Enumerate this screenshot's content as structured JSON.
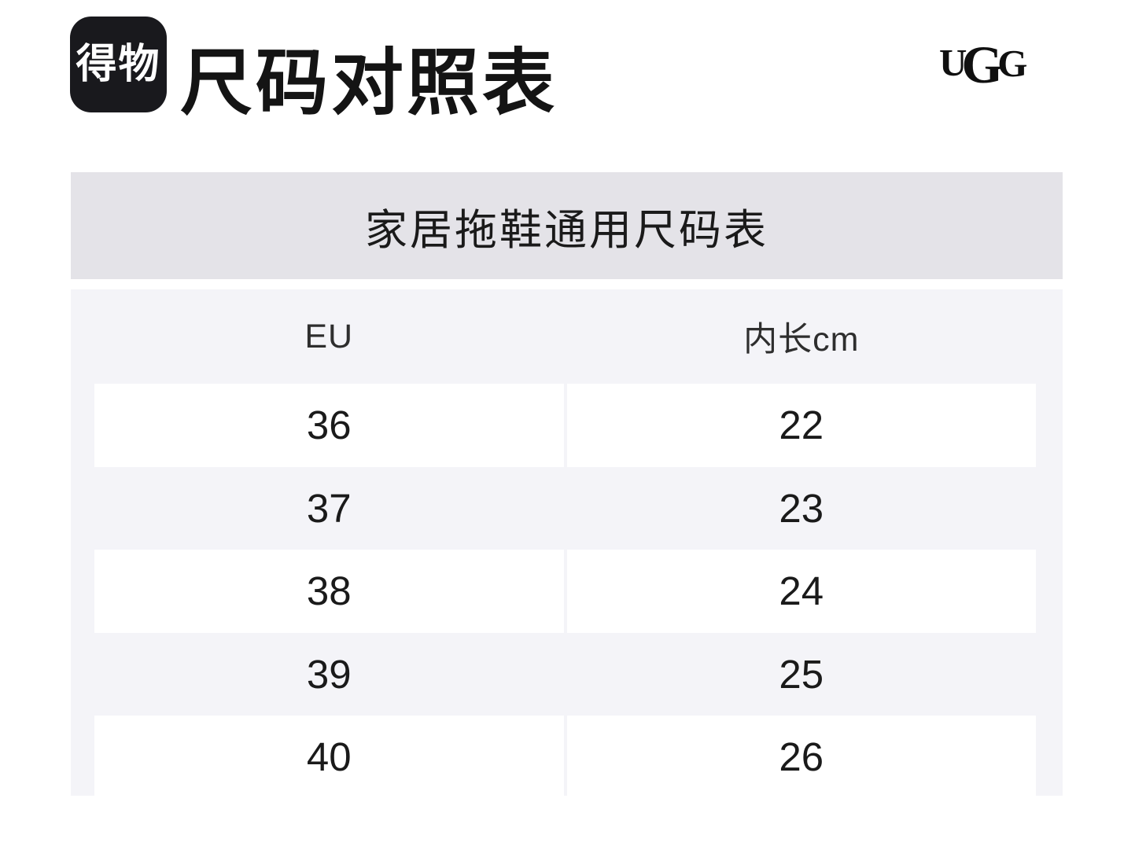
{
  "header": {
    "app_logo_text": "得物",
    "title": "尺码对照表",
    "brand_letters": [
      "U",
      "G",
      "G"
    ]
  },
  "banner": {
    "title": "家居拖鞋通用尺码表"
  },
  "size_table": {
    "columns": [
      "EU",
      "内长cm"
    ],
    "rows": [
      [
        "36",
        "22"
      ],
      [
        "37",
        "23"
      ],
      [
        "38",
        "24"
      ],
      [
        "39",
        "25"
      ],
      [
        "40",
        "26"
      ]
    ]
  },
  "colors": {
    "page_bg": "#ffffff",
    "logo_bg": "#19191d",
    "logo_text": "#ffffff",
    "title_text": "#141414",
    "banner_bg": "#e4e3e8",
    "table_panel_bg": "#f4f4f8",
    "row_card_bg": "#ffffff",
    "number_text": "#1a1a1a"
  },
  "chart_data": {
    "type": "table",
    "title": "家居拖鞋通用尺码表",
    "columns": [
      "EU",
      "内长cm"
    ],
    "rows": [
      [
        "36",
        "22"
      ],
      [
        "37",
        "23"
      ],
      [
        "38",
        "24"
      ],
      [
        "39",
        "25"
      ],
      [
        "40",
        "26"
      ]
    ]
  }
}
